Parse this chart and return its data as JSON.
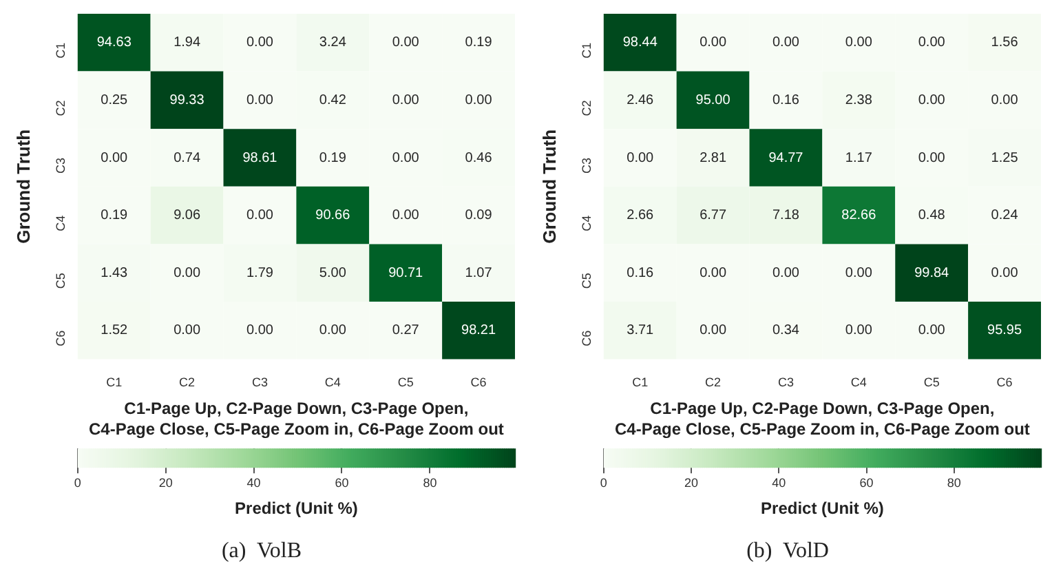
{
  "chart_data": [
    {
      "type": "heatmap",
      "title": "(a)  VolB",
      "xlabel": "C1-Page Up, C2-Page Down, C3-Page Open,\nC4-Page Close, C5-Page Zoom in, C6-Page Zoom out",
      "ylabel": "Ground Truth",
      "clabel": "Predict (Unit %)",
      "categories": [
        "C1",
        "C2",
        "C3",
        "C4",
        "C5",
        "C6"
      ],
      "y_categories": [
        "C1",
        "C2",
        "C3",
        "C4",
        "C5",
        "C6"
      ],
      "cells": [
        [
          94.63,
          1.94,
          0.0,
          3.24,
          0.0,
          0.19
        ],
        [
          0.25,
          99.33,
          0.0,
          0.42,
          0.0,
          0.0
        ],
        [
          0.0,
          0.74,
          98.61,
          0.19,
          0.0,
          0.46
        ],
        [
          0.19,
          9.06,
          0.0,
          90.66,
          0.0,
          0.09
        ],
        [
          1.43,
          0.0,
          1.79,
          5.0,
          90.71,
          1.07
        ],
        [
          1.52,
          0.0,
          0.0,
          0.0,
          0.27,
          98.21
        ]
      ],
      "cell_labels": [
        [
          "94.63",
          "1.94",
          "0.00",
          "3.24",
          "0.00",
          "0.19"
        ],
        [
          "0.25",
          "99.33",
          "0.00",
          "0.42",
          "0.00",
          "0.00"
        ],
        [
          "0.00",
          "0.74",
          "98.61",
          "0.19",
          "0.00",
          "0.46"
        ],
        [
          "0.19",
          "9.06",
          "0.00",
          "90.66",
          "0.00",
          "0.09"
        ],
        [
          "1.43",
          "0.00",
          "1.79",
          "5.00",
          "90.71",
          "1.07"
        ],
        [
          "1.52",
          "0.00",
          "0.00",
          "0.00",
          "0.27",
          "98.21"
        ]
      ],
      "clim": [
        0,
        99.33
      ],
      "cticks": [
        0,
        20,
        40,
        60,
        80
      ]
    },
    {
      "type": "heatmap",
      "title": "(b)  VolD",
      "xlabel": "C1-Page Up, C2-Page Down, C3-Page Open,\nC4-Page Close, C5-Page Zoom in, C6-Page Zoom out",
      "ylabel": "Ground Truth",
      "clabel": "Predict (Unit %)",
      "categories": [
        "C1",
        "C2",
        "C3",
        "C4",
        "C5",
        "C6"
      ],
      "y_categories": [
        "C1",
        "C2",
        "C3",
        "C4",
        "C5",
        "C6"
      ],
      "cells": [
        [
          98.44,
          0.0,
          0.0,
          0.0,
          0.0,
          1.56
        ],
        [
          2.46,
          95.0,
          0.16,
          2.38,
          0.0,
          0.0
        ],
        [
          0.0,
          2.81,
          94.77,
          1.17,
          0.0,
          1.25
        ],
        [
          2.66,
          6.77,
          7.18,
          82.66,
          0.48,
          0.24
        ],
        [
          0.16,
          0.0,
          0.0,
          0.0,
          99.84,
          0.0
        ],
        [
          3.71,
          0.0,
          0.34,
          0.0,
          0.0,
          95.95
        ]
      ],
      "cell_labels": [
        [
          "98.44",
          "0.00",
          "0.00",
          "0.00",
          "0.00",
          "1.56"
        ],
        [
          "2.46",
          "95.00",
          "0.16",
          "2.38",
          "0.00",
          "0.00"
        ],
        [
          "0.00",
          "2.81",
          "94.77",
          "1.17",
          "0.00",
          "1.25"
        ],
        [
          "2.66",
          "6.77",
          "7.18",
          "82.66",
          "0.48",
          "0.24"
        ],
        [
          "0.16",
          "0.00",
          "0.00",
          "0.00",
          "99.84",
          "0.00"
        ],
        [
          "3.71",
          "0.00",
          "0.34",
          "0.00",
          "0.00",
          "95.95"
        ]
      ],
      "clim": [
        0,
        99.84
      ],
      "cticks": [
        0,
        20,
        40,
        60,
        80
      ]
    }
  ]
}
